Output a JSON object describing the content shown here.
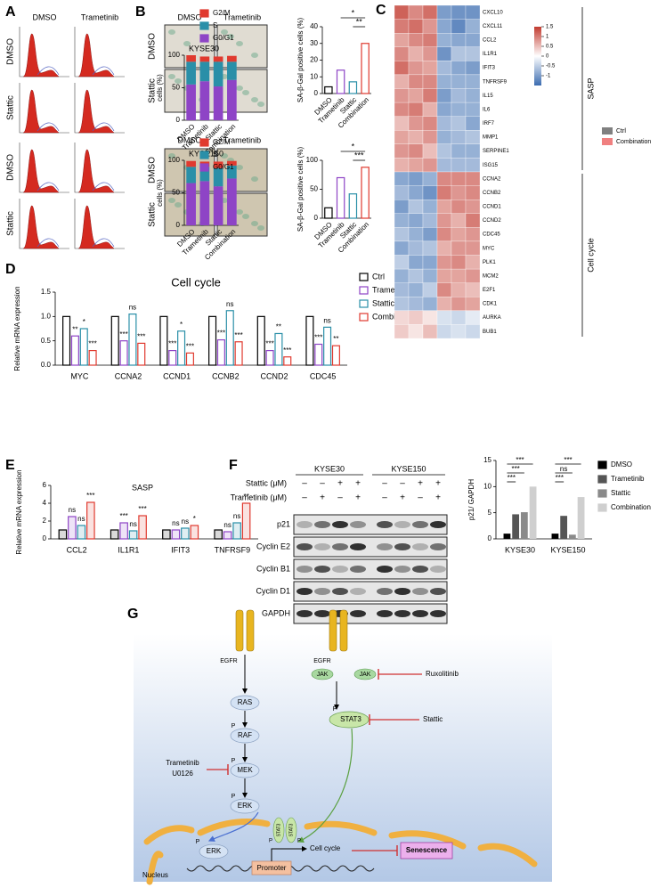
{
  "panels": [
    "A",
    "B",
    "C",
    "D",
    "E",
    "F",
    "G"
  ],
  "flow": {
    "columns": [
      "DMSO",
      "Trametinib"
    ],
    "rows": [
      "DMSO",
      "Stattic",
      "DMSO",
      "Stattic"
    ]
  },
  "microscopy": {
    "columns": [
      "DMSO",
      "Trametinib",
      "DMSO",
      "Trametinib"
    ],
    "rows": [
      "DMSO",
      "Stattic",
      "DMSO",
      "Stattic"
    ]
  },
  "western": {
    "cell_lines": [
      "KYSE30",
      "KYSE150"
    ],
    "treatments": [
      {
        "name": "Stattic (μM)",
        "signs": [
          "–",
          "–",
          "+",
          "+",
          "–",
          "–",
          "+",
          "+"
        ]
      },
      {
        "name": "Trametinib (μM)",
        "signs": [
          "–",
          "+",
          "–",
          "+",
          "–",
          "+",
          "–",
          "+"
        ]
      }
    ],
    "proteins": [
      "p21",
      "Cyclin E2",
      "Cyclin B1",
      "Cyclin D1",
      "GAPDH"
    ]
  },
  "diagram": {
    "receptors": [
      "EGFR",
      "EGFR"
    ],
    "jak": [
      "JAK",
      "JAK"
    ],
    "inhibitors": [
      "Ruxolitinib",
      "Stattic",
      "Trametinib",
      "U0126"
    ],
    "cascade": [
      "RAS",
      "RAF",
      "MEK",
      "ERK"
    ],
    "stat3": "STAT3",
    "phospho": "P",
    "nuclear": [
      "ERK",
      "STAT3",
      "STAT3"
    ],
    "cell_cycle": "Cell cycle",
    "senescence": "Senescence",
    "promoter": "Promoter",
    "nucleus": "Nucleus"
  },
  "chart_data": [
    {
      "type": "bar",
      "stacked": true,
      "title": "KYSE30",
      "y_label": "cells (%)",
      "categories": [
        "DMSO",
        "Trametinib",
        "Stattic",
        "Combination"
      ],
      "series": [
        {
          "name": "G0/G1",
          "color": "#8e44c6",
          "values": [
            55,
            60,
            52,
            62
          ]
        },
        {
          "name": "S",
          "color": "#2a8fa8",
          "values": [
            35,
            30,
            38,
            28
          ]
        },
        {
          "name": "G2/M",
          "color": "#e03a2f",
          "values": [
            10,
            8,
            8,
            9
          ]
        }
      ],
      "ylim": [
        0,
        100
      ],
      "yticks": [
        0,
        50,
        100
      ]
    },
    {
      "type": "bar",
      "stacked": true,
      "title": "KYSE150",
      "y_label": "cells (%)",
      "categories": [
        "DMSO",
        "Trametinib",
        "Stattic",
        "Combination"
      ],
      "series": [
        {
          "name": "G0/G1",
          "color": "#8e44c6",
          "values": [
            65,
            68,
            60,
            72
          ]
        },
        {
          "name": "S",
          "color": "#2a8fa8",
          "values": [
            25,
            22,
            28,
            20
          ]
        },
        {
          "name": "G2/M",
          "color": "#e03a2f",
          "values": [
            9,
            8,
            10,
            7
          ]
        }
      ],
      "ylim": [
        0,
        100
      ],
      "yticks": [
        0,
        50,
        100
      ]
    },
    {
      "type": "bar",
      "y_label": "SA-β-Gal positive cells (%)",
      "categories": [
        "DMSO",
        "Trametinib",
        "Stattic",
        "Combination"
      ],
      "values": [
        4,
        14,
        7,
        30
      ],
      "colors": [
        "#000000",
        "#8e44c6",
        "#2a8fa8",
        "#e03a2f"
      ],
      "ylim": [
        0,
        40
      ],
      "yticks": [
        0,
        10,
        20,
        30,
        40
      ],
      "annotations": [
        "*",
        "**"
      ]
    },
    {
      "type": "bar",
      "y_label": "SA-β-Gal positive cells (%)",
      "categories": [
        "DMSO",
        "Trametinib",
        "Stattic",
        "Combination"
      ],
      "values": [
        18,
        70,
        42,
        88
      ],
      "colors": [
        "#000000",
        "#8e44c6",
        "#2a8fa8",
        "#e03a2f"
      ],
      "ylim": [
        0,
        100
      ],
      "yticks": [
        0,
        50,
        100
      ],
      "annotations": [
        "*",
        "***"
      ]
    },
    {
      "type": "bar",
      "title": "Cell cycle",
      "y_label": "Relative mRNA expression",
      "categories": [
        "MYC",
        "CCNA2",
        "CCND1",
        "CCNB2",
        "CCND2",
        "CDC45"
      ],
      "series": [
        {
          "name": "Ctrl",
          "color": "#000000",
          "values": [
            1,
            1,
            1,
            1,
            1,
            1
          ]
        },
        {
          "name": "Trametinib",
          "color": "#8e44c6",
          "values": [
            0.6,
            0.5,
            0.3,
            0.52,
            0.3,
            0.43
          ],
          "significance": [
            "**",
            "***",
            "***",
            "***",
            "***",
            "***"
          ]
        },
        {
          "name": "Stattic",
          "color": "#2a8fa8",
          "values": [
            0.75,
            1.05,
            0.7,
            1.12,
            0.65,
            0.78
          ],
          "significance": [
            "*",
            "ns",
            "*",
            "ns",
            "**",
            "ns"
          ]
        },
        {
          "name": "Combination",
          "color": "#e03a2f",
          "values": [
            0.3,
            0.45,
            0.25,
            0.48,
            0.17,
            0.4
          ],
          "significance": [
            "***",
            "***",
            "***",
            "***",
            "***",
            "**"
          ]
        }
      ],
      "ylim": [
        0,
        1.5
      ],
      "yticks": [
        {
          "value": 0,
          "label": "0.0"
        },
        0.5,
        {
          "value": 1,
          "label": "1.0"
        },
        1.5
      ]
    },
    {
      "type": "bar",
      "title": "SASP",
      "y_label": "Relative mRNA expression",
      "categories": [
        "CCL2",
        "IL1R1",
        "IFIT3",
        "TNFRSF9"
      ],
      "series": [
        {
          "name": "Ctrl",
          "color": "#000000",
          "values": [
            1,
            1,
            1,
            1
          ]
        },
        {
          "name": "Trametinib",
          "color": "#8e44c6",
          "values": [
            2.5,
            1.8,
            1.0,
            0.8
          ],
          "significance": [
            "ns",
            "***",
            "ns",
            "ns"
          ]
        },
        {
          "name": "Stattic",
          "color": "#2a8fa8",
          "values": [
            1.5,
            0.9,
            1.2,
            1.8
          ],
          "significance": [
            "ns",
            "ns",
            "ns",
            "ns"
          ]
        },
        {
          "name": "Combination",
          "color": "#e03a2f",
          "values": [
            4.1,
            2.6,
            1.5,
            4.0
          ],
          "significance": [
            "***",
            "***",
            "*",
            "**"
          ]
        }
      ],
      "ylim": [
        0,
        6
      ],
      "yticks": [
        0,
        2,
        4,
        6
      ]
    },
    {
      "type": "bar",
      "y_label": "p21/ GAPDH",
      "categories": [
        "KYSE30",
        "KYSE150"
      ],
      "series": [
        {
          "name": "DMSO",
          "color": "#000000",
          "values": [
            1,
            1
          ]
        },
        {
          "name": "Trametinib",
          "color": "#555555",
          "values": [
            4.7,
            4.4
          ]
        },
        {
          "name": "Stattic",
          "color": "#8a8a8a",
          "values": [
            5.1,
            0.8
          ]
        },
        {
          "name": "Combination",
          "color": "#cfcfcf",
          "values": [
            10,
            8
          ]
        }
      ],
      "ylim": [
        0,
        15
      ],
      "yticks": [
        0,
        5,
        10,
        15
      ],
      "annotations": [
        "***",
        "***",
        "***",
        "***",
        "ns",
        "***"
      ]
    },
    {
      "type": "heatmap",
      "rows": [
        "CXCL10",
        "CXCL11",
        "CCL2",
        "IL1R1",
        "IFIT3",
        "TNFRSF9",
        "IL15",
        "IL6",
        "IRF7",
        "MMP1",
        "SERPINE1",
        "ISG15",
        "CCNA2",
        "CCNB2",
        "CCND1",
        "CCND2",
        "CDC45",
        "MYC",
        "PLK1",
        "MCM2",
        "E2F1",
        "CDK1",
        "AURKA",
        "BUB1"
      ],
      "values": [
        [
          1.2,
          0.9,
          1.1,
          -1.0,
          -1.1,
          -1.1
        ],
        [
          1.0,
          1.1,
          0.8,
          -0.9,
          -1.2,
          -0.8
        ],
        [
          0.7,
          0.9,
          1.0,
          -0.8,
          -0.9,
          -0.9
        ],
        [
          0.9,
          0.6,
          0.8,
          -1.1,
          -0.6,
          -0.6
        ],
        [
          1.1,
          0.8,
          0.7,
          -0.7,
          -0.9,
          -1.0
        ],
        [
          0.6,
          0.9,
          0.9,
          -0.8,
          -0.8,
          -0.8
        ],
        [
          0.8,
          0.7,
          1.0,
          -1.0,
          -0.7,
          -0.8
        ],
        [
          0.9,
          1.0,
          0.6,
          -0.9,
          -0.8,
          -0.8
        ],
        [
          0.5,
          0.8,
          0.9,
          -0.7,
          -0.6,
          -0.9
        ],
        [
          0.7,
          0.6,
          0.8,
          -0.8,
          -0.7,
          -0.6
        ],
        [
          0.8,
          0.9,
          0.5,
          -0.6,
          -0.8,
          -0.8
        ],
        [
          0.6,
          0.7,
          0.8,
          -0.7,
          -0.7,
          -0.7
        ],
        [
          -0.9,
          -1.0,
          -0.8,
          0.9,
          0.9,
          0.9
        ],
        [
          -0.7,
          -0.9,
          -1.1,
          1.0,
          0.8,
          0.9
        ],
        [
          -1.0,
          -0.6,
          -0.8,
          0.7,
          0.9,
          0.8
        ],
        [
          -0.8,
          -0.9,
          -0.7,
          0.8,
          0.6,
          1.0
        ],
        [
          -0.6,
          -0.8,
          -1.0,
          0.9,
          0.7,
          0.8
        ],
        [
          -0.9,
          -0.7,
          -0.6,
          0.6,
          0.8,
          0.8
        ],
        [
          -0.5,
          -0.9,
          -0.9,
          0.8,
          0.9,
          0.6
        ],
        [
          -0.8,
          -0.6,
          -0.8,
          0.7,
          0.7,
          0.8
        ],
        [
          -0.7,
          -0.8,
          -0.5,
          0.9,
          0.6,
          0.5
        ],
        [
          -0.6,
          -0.7,
          -0.8,
          0.6,
          0.8,
          0.7
        ],
        [
          0.3,
          0.4,
          0.2,
          -0.3,
          -0.4,
          -0.2
        ],
        [
          0.4,
          0.2,
          0.5,
          -0.4,
          -0.3,
          -0.4
        ]
      ],
      "clim": [
        -1.5,
        1.5
      ],
      "cticks": [
        1.5,
        1,
        0.5,
        0,
        -0.5,
        -1
      ],
      "groups": [
        "SASP",
        "Cell cycle"
      ],
      "column_groups": [
        {
          "name": "Ctrl",
          "color": "#808080"
        },
        {
          "name": "Combination",
          "color": "#f08080"
        }
      ]
    }
  ]
}
